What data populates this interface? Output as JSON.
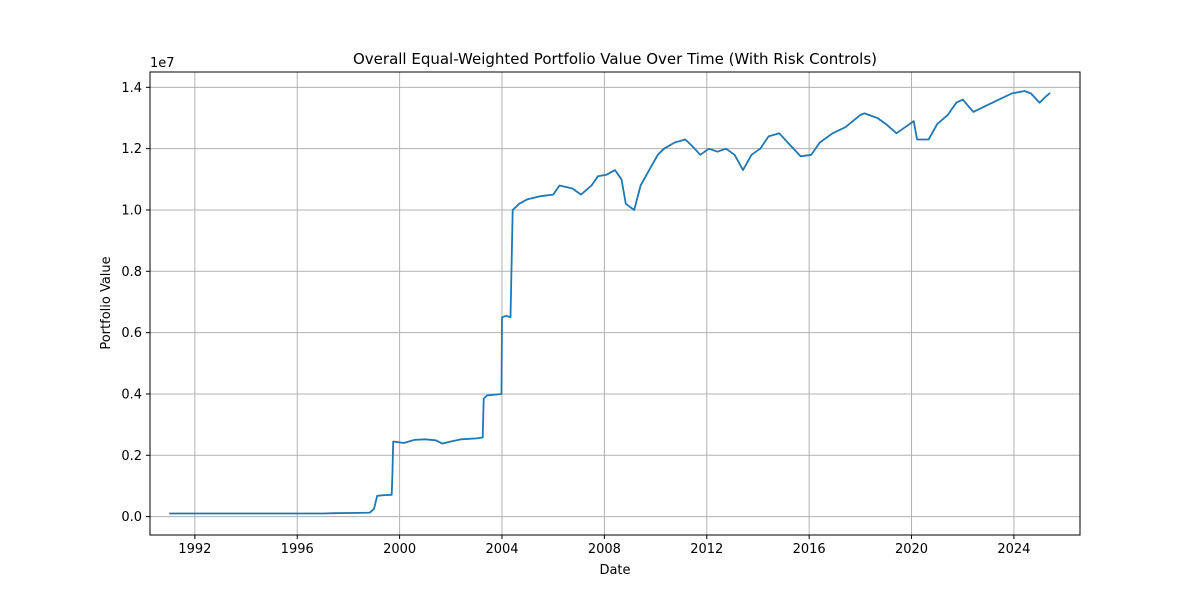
{
  "colors": {
    "line": "#1f77b4",
    "grid": "#b0b0b0",
    "axis": "#000000",
    "background": "#ffffff"
  },
  "chart_data": {
    "type": "line",
    "title": "Overall Equal-Weighted Portfolio Value Over Time (With Risk Controls)",
    "xlabel": "Date",
    "ylabel": "Portfolio Value",
    "y_offset_label": "1e7",
    "xlim": [
      "1990-04-01",
      "2026-08-01"
    ],
    "ylim": [
      -0.06,
      1.45
    ],
    "x_ticks": [
      {
        "date": "1992-01-01",
        "label": "1992"
      },
      {
        "date": "1996-01-01",
        "label": "1996"
      },
      {
        "date": "2000-01-01",
        "label": "2000"
      },
      {
        "date": "2004-01-01",
        "label": "2004"
      },
      {
        "date": "2008-01-01",
        "label": "2008"
      },
      {
        "date": "2012-01-01",
        "label": "2012"
      },
      {
        "date": "2016-01-01",
        "label": "2016"
      },
      {
        "date": "2020-01-01",
        "label": "2020"
      },
      {
        "date": "2024-01-01",
        "label": "2024"
      }
    ],
    "y_ticks": [
      {
        "value": 0.0,
        "label": "0.0"
      },
      {
        "value": 0.2,
        "label": "0.2"
      },
      {
        "value": 0.4,
        "label": "0.4"
      },
      {
        "value": 0.6,
        "label": "0.6"
      },
      {
        "value": 0.8,
        "label": "0.8"
      },
      {
        "value": 1.0,
        "label": "1.0"
      },
      {
        "value": 1.2,
        "label": "1.2"
      },
      {
        "value": 1.4,
        "label": "1.4"
      }
    ],
    "grid": true,
    "series": [
      {
        "points": [
          [
            "1991-01-01",
            0.01
          ],
          [
            "1993-01-01",
            0.01
          ],
          [
            "1995-01-01",
            0.01
          ],
          [
            "1997-01-01",
            0.01
          ],
          [
            "1997-06-01",
            0.011
          ],
          [
            "1998-06-01",
            0.012
          ],
          [
            "1998-11-01",
            0.013
          ],
          [
            "1999-01-01",
            0.025
          ],
          [
            "1999-02-15",
            0.068
          ],
          [
            "1999-06-01",
            0.07
          ],
          [
            "1999-09-10",
            0.071
          ],
          [
            "1999-09-20",
            0.135
          ],
          [
            "1999-10-01",
            0.245
          ],
          [
            "2000-03-01",
            0.24
          ],
          [
            "2000-08-01",
            0.25
          ],
          [
            "2001-01-01",
            0.252
          ],
          [
            "2001-06-01",
            0.249
          ],
          [
            "2001-09-01",
            0.238
          ],
          [
            "2002-01-01",
            0.245
          ],
          [
            "2002-06-01",
            0.252
          ],
          [
            "2003-01-01",
            0.255
          ],
          [
            "2003-04-01",
            0.258
          ],
          [
            "2003-04-15",
            0.385
          ],
          [
            "2003-06-01",
            0.395
          ],
          [
            "2003-12-25",
            0.4
          ],
          [
            "2004-01-01",
            0.65
          ],
          [
            "2004-03-01",
            0.655
          ],
          [
            "2004-05-01",
            0.65
          ],
          [
            "2004-06-01",
            1.0
          ],
          [
            "2004-09-01",
            1.02
          ],
          [
            "2005-01-01",
            1.035
          ],
          [
            "2005-07-01",
            1.045
          ],
          [
            "2006-01-01",
            1.05
          ],
          [
            "2006-04-01",
            1.08
          ],
          [
            "2006-10-01",
            1.07
          ],
          [
            "2007-02-01",
            1.05
          ],
          [
            "2007-07-01",
            1.08
          ],
          [
            "2007-10-01",
            1.11
          ],
          [
            "2008-02-01",
            1.115
          ],
          [
            "2008-06-01",
            1.13
          ],
          [
            "2008-09-01",
            1.1
          ],
          [
            "2008-11-01",
            1.02
          ],
          [
            "2009-03-01",
            1.0
          ],
          [
            "2009-06-01",
            1.08
          ],
          [
            "2009-10-01",
            1.13
          ],
          [
            "2010-02-01",
            1.18
          ],
          [
            "2010-05-01",
            1.2
          ],
          [
            "2010-10-01",
            1.22
          ],
          [
            "2011-03-01",
            1.23
          ],
          [
            "2011-06-01",
            1.21
          ],
          [
            "2011-10-01",
            1.18
          ],
          [
            "2012-02-01",
            1.2
          ],
          [
            "2012-06-01",
            1.19
          ],
          [
            "2012-10-01",
            1.2
          ],
          [
            "2013-02-01",
            1.18
          ],
          [
            "2013-06-01",
            1.13
          ],
          [
            "2013-10-01",
            1.18
          ],
          [
            "2014-02-01",
            1.2
          ],
          [
            "2014-06-01",
            1.24
          ],
          [
            "2014-11-01",
            1.25
          ],
          [
            "2015-03-01",
            1.22
          ],
          [
            "2015-09-01",
            1.175
          ],
          [
            "2016-02-01",
            1.18
          ],
          [
            "2016-06-01",
            1.22
          ],
          [
            "2016-12-01",
            1.25
          ],
          [
            "2017-06-01",
            1.27
          ],
          [
            "2018-01-01",
            1.31
          ],
          [
            "2018-03-01",
            1.315
          ],
          [
            "2018-09-01",
            1.3
          ],
          [
            "2019-01-01",
            1.28
          ],
          [
            "2019-06-01",
            1.25
          ],
          [
            "2019-10-01",
            1.27
          ],
          [
            "2020-02-01",
            1.29
          ],
          [
            "2020-03-20",
            1.23
          ],
          [
            "2020-09-01",
            1.23
          ],
          [
            "2021-01-01",
            1.28
          ],
          [
            "2021-06-01",
            1.31
          ],
          [
            "2021-10-01",
            1.35
          ],
          [
            "2022-01-01",
            1.36
          ],
          [
            "2022-06-01",
            1.32
          ],
          [
            "2022-12-01",
            1.34
          ],
          [
            "2023-06-01",
            1.36
          ],
          [
            "2023-12-01",
            1.38
          ],
          [
            "2024-06-01",
            1.388
          ],
          [
            "2024-09-01",
            1.38
          ],
          [
            "2025-01-01",
            1.35
          ],
          [
            "2025-04-01",
            1.37
          ],
          [
            "2025-06-01",
            1.382
          ]
        ]
      }
    ]
  }
}
